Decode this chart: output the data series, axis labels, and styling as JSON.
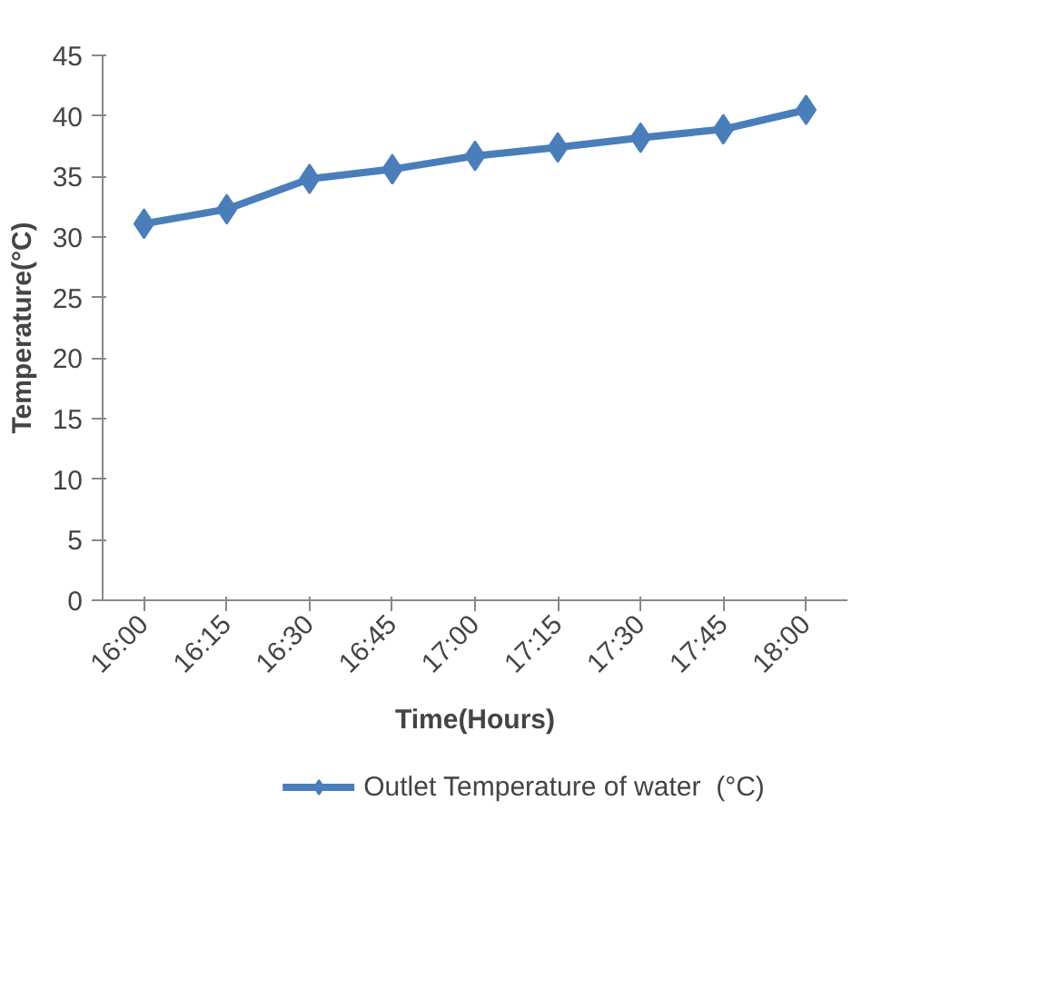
{
  "chart_data": {
    "type": "line",
    "xlabel": "Time(Hours)",
    "ylabel": "Temperature(°C)",
    "categories": [
      "16:00",
      "16:15",
      "16:30",
      "16:45",
      "17:00",
      "17:15",
      "17:30",
      "17:45",
      "18:00"
    ],
    "series": [
      {
        "name": "Outlet Temperature of water  (°C)",
        "color": "#4a7ebb",
        "values": [
          31.1,
          32.3,
          34.8,
          35.6,
          36.7,
          37.4,
          38.2,
          38.9,
          40.5
        ]
      }
    ],
    "ylim": [
      0,
      45
    ],
    "yticks": [
      0,
      5,
      10,
      15,
      20,
      25,
      30,
      35,
      40,
      45
    ],
    "grid": false,
    "legend": "bottom",
    "marker": "diamond",
    "line_style": "solid"
  }
}
